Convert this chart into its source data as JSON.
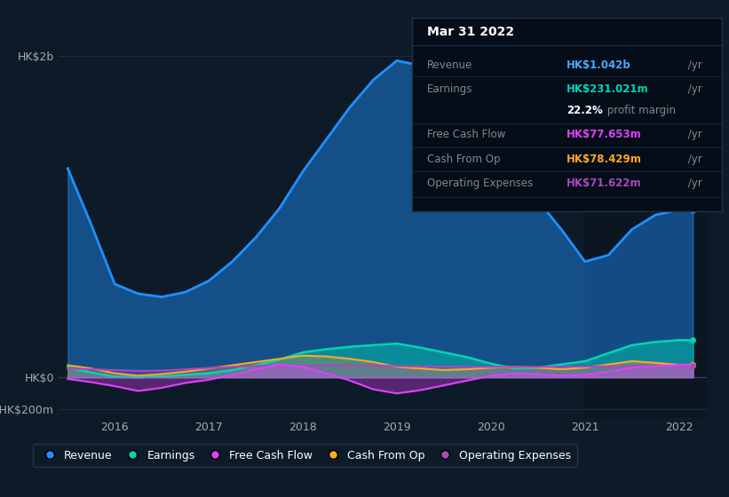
{
  "bg_color": "#0d1a27",
  "plot_bg_color": "#0d1a27",
  "grid_color": "#1a2d40",
  "years": [
    2015.5,
    2015.75,
    2016.0,
    2016.25,
    2016.5,
    2016.75,
    2017.0,
    2017.25,
    2017.5,
    2017.75,
    2018.0,
    2018.25,
    2018.5,
    2018.75,
    2019.0,
    2019.25,
    2019.5,
    2019.75,
    2020.0,
    2020.25,
    2020.5,
    2020.75,
    2021.0,
    2021.25,
    2021.5,
    2021.75,
    2022.0,
    2022.15
  ],
  "revenue": [
    1300,
    950,
    580,
    520,
    500,
    530,
    600,
    720,
    870,
    1050,
    1280,
    1480,
    1680,
    1850,
    1970,
    1940,
    1870,
    1720,
    1500,
    1280,
    1100,
    920,
    720,
    760,
    920,
    1010,
    1042,
    1042
  ],
  "earnings": [
    60,
    30,
    5,
    0,
    5,
    15,
    25,
    45,
    75,
    110,
    155,
    175,
    190,
    200,
    210,
    185,
    155,
    125,
    85,
    55,
    60,
    80,
    100,
    150,
    200,
    220,
    231,
    231
  ],
  "free_cash_flow": [
    -10,
    -30,
    -55,
    -85,
    -65,
    -35,
    -15,
    15,
    50,
    80,
    65,
    25,
    -20,
    -75,
    -100,
    -80,
    -50,
    -20,
    10,
    25,
    20,
    10,
    15,
    35,
    60,
    70,
    78,
    78
  ],
  "cash_from_op": [
    75,
    55,
    25,
    10,
    20,
    35,
    55,
    75,
    95,
    115,
    135,
    130,
    115,
    95,
    65,
    55,
    45,
    50,
    60,
    65,
    60,
    50,
    60,
    80,
    100,
    90,
    78,
    78
  ],
  "op_expenses": [
    55,
    50,
    45,
    40,
    42,
    50,
    58,
    65,
    70,
    72,
    74,
    76,
    75,
    73,
    70,
    68,
    67,
    66,
    65,
    64,
    65,
    66,
    67,
    68,
    70,
    71,
    72,
    72
  ],
  "revenue_color": "#1e90ff",
  "earnings_color": "#00d4b4",
  "fcf_color": "#e040fb",
  "cashop_color": "#ffa726",
  "opex_color": "#ab47bc",
  "revenue_fill_alpha": 0.45,
  "earnings_fill_alpha": 0.45,
  "fcf_fill_alpha": 0.35,
  "cashop_fill_alpha": 0.25,
  "opex_fill_alpha": 0.25,
  "ylim_min": -250,
  "ylim_max": 2100,
  "ytick_vals": [
    -200,
    0,
    2000
  ],
  "ytick_labels": [
    "-HK$200m",
    "HK$0",
    "HK$2b"
  ],
  "xtick_vals": [
    2016,
    2017,
    2018,
    2019,
    2020,
    2021,
    2022
  ],
  "info_title": "Mar 31 2022",
  "info_rows": [
    {
      "label": "Revenue",
      "value": "HK$1.042b",
      "unit": " /yr",
      "value_color": "#4da6ff"
    },
    {
      "label": "Earnings",
      "value": "HK$231.021m",
      "unit": " /yr",
      "value_color": "#00d4b4"
    },
    {
      "label": "",
      "value": "22.2%",
      "unit": " profit margin",
      "value_color": "#ffffff",
      "is_margin": true
    },
    {
      "label": "Free Cash Flow",
      "value": "HK$77.653m",
      "unit": " /yr",
      "value_color": "#e040fb"
    },
    {
      "label": "Cash From Op",
      "value": "HK$78.429m",
      "unit": " /yr",
      "value_color": "#ffa726"
    },
    {
      "label": "Operating Expenses",
      "value": "HK$71.622m",
      "unit": " /yr",
      "value_color": "#ab47bc"
    }
  ],
  "legend_labels": [
    "Revenue",
    "Earnings",
    "Free Cash Flow",
    "Cash From Op",
    "Operating Expenses"
  ],
  "legend_colors": [
    "#1e90ff",
    "#00d4b4",
    "#e040fb",
    "#ffa726",
    "#ab47bc"
  ],
  "dark_overlay_x": 2021.0,
  "dark_overlay_alpha": 0.15
}
